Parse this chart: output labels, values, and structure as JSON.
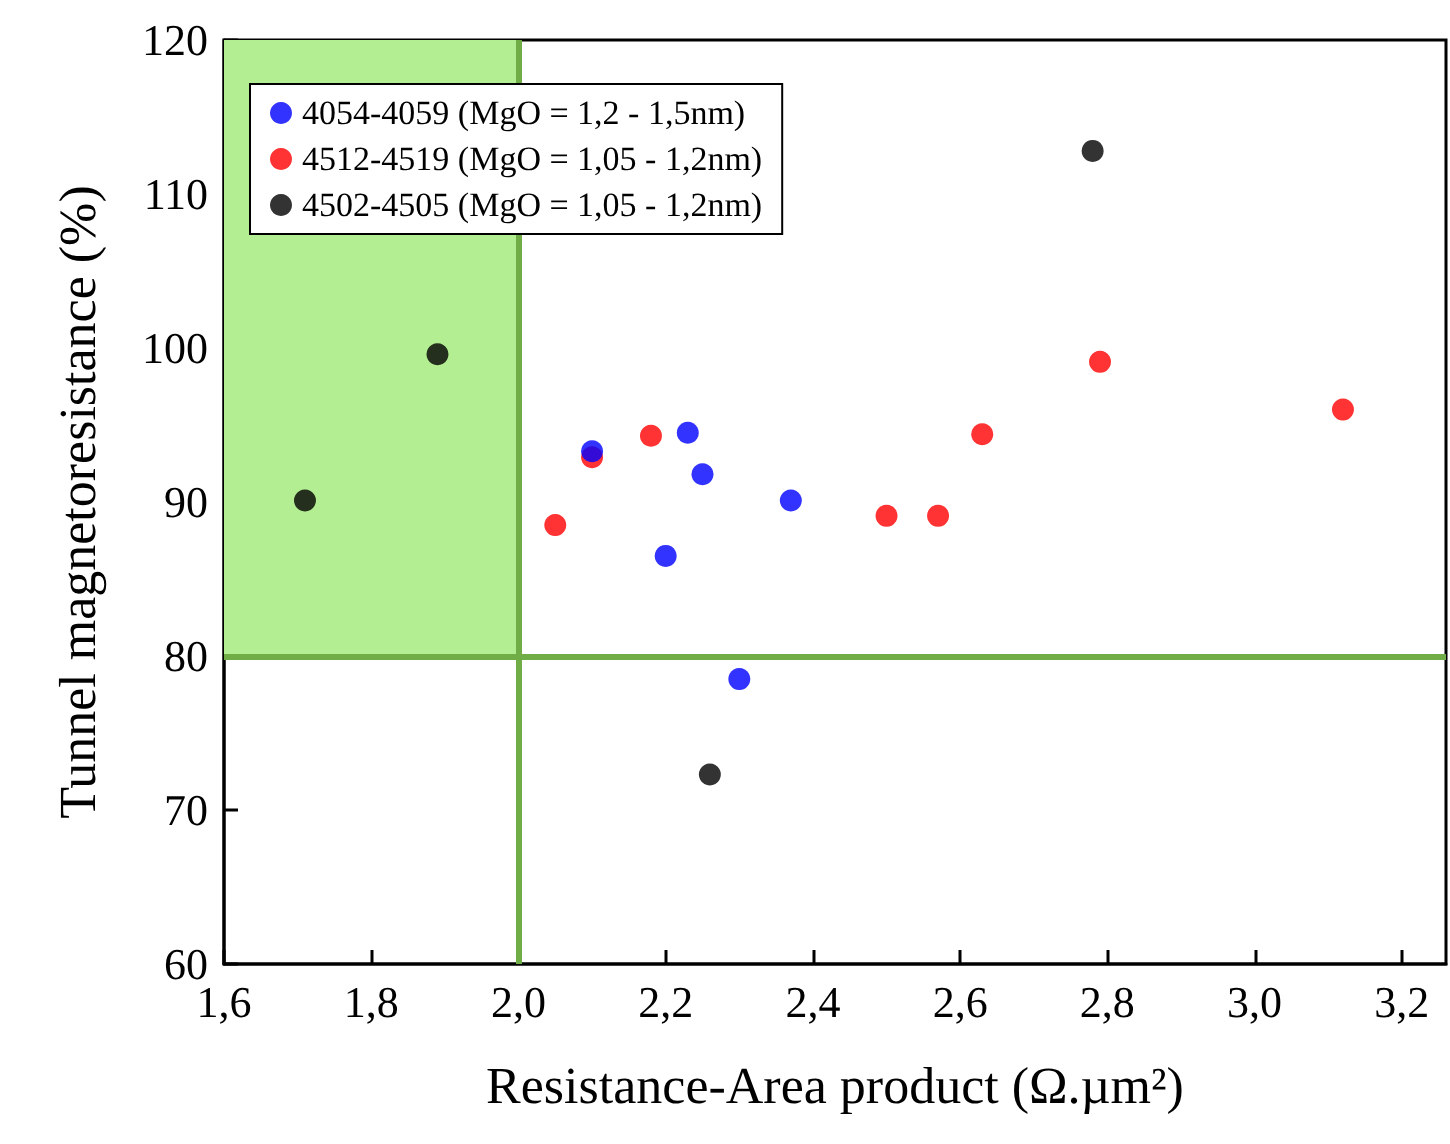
{
  "chart_data": {
    "type": "scatter",
    "xlabel": "Resistance-Area product (Ω.µm²)",
    "ylabel": "Tunnel magnetoresistance (%)",
    "xlim": [
      1.6,
      3.26
    ],
    "xticks": [
      {
        "value": 1.6,
        "label": "1,6"
      },
      {
        "value": 1.8,
        "label": "1,8"
      },
      {
        "value": 2.0,
        "label": "2,0"
      },
      {
        "value": 2.2,
        "label": "2,2"
      },
      {
        "value": 2.4,
        "label": "2,4"
      },
      {
        "value": 2.6,
        "label": "2,6"
      },
      {
        "value": 2.8,
        "label": "2,8"
      },
      {
        "value": 3.0,
        "label": "3,0"
      },
      {
        "value": 3.2,
        "label": "3,2"
      }
    ],
    "ylim": [
      60,
      120
    ],
    "yticks": [
      60,
      70,
      80,
      90,
      100,
      110,
      120
    ],
    "marker": "circle",
    "legend": "top left",
    "grid": false,
    "series": [
      {
        "name": "4054-4059 (MgO = 1,2 - 1,5nm)",
        "color": "#0000ff",
        "x": [
          2.1,
          2.23,
          2.25,
          2.2,
          2.37,
          2.3
        ],
        "values": [
          93.3,
          94.5,
          91.8,
          86.5,
          90.1,
          78.5
        ]
      },
      {
        "name": "4512-4519 (MgO = 1,05 - 1,2nm)",
        "color": "#ff0000",
        "x": [
          2.05,
          2.1,
          2.18,
          2.5,
          2.57,
          2.63,
          2.79,
          3.12
        ],
        "values": [
          88.5,
          92.9,
          94.3,
          89.1,
          89.1,
          94.4,
          99.1,
          96.0
        ]
      },
      {
        "name": "4502-4505 (MgO = 1,05 - 1,2nm)",
        "color": "#000000",
        "x": [
          1.71,
          1.89,
          2.26,
          2.78
        ],
        "values": [
          90.1,
          99.6,
          72.3,
          112.8
        ]
      }
    ],
    "ref_lines": [
      {
        "axis": "x",
        "value": 2.0,
        "color": "#70ad47"
      },
      {
        "axis": "y",
        "value": 80,
        "color": "#70ad47"
      }
    ],
    "bands": [
      {
        "axis": "x",
        "from": 1.6,
        "to": 2.0,
        "color": "#b3ef92"
      }
    ]
  }
}
